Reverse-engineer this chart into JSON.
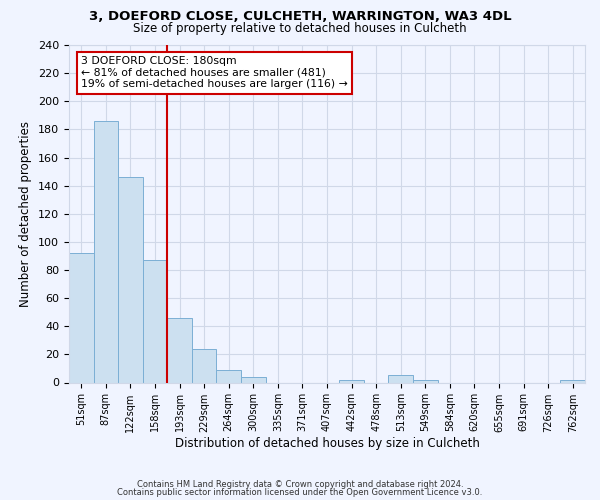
{
  "title1": "3, DOEFORD CLOSE, CULCHETH, WARRINGTON, WA3 4DL",
  "title2": "Size of property relative to detached houses in Culcheth",
  "xlabel": "Distribution of detached houses by size in Culcheth",
  "ylabel": "Number of detached properties",
  "bar_labels": [
    "51sqm",
    "87sqm",
    "122sqm",
    "158sqm",
    "193sqm",
    "229sqm",
    "264sqm",
    "300sqm",
    "335sqm",
    "371sqm",
    "407sqm",
    "442sqm",
    "478sqm",
    "513sqm",
    "549sqm",
    "584sqm",
    "620sqm",
    "655sqm",
    "691sqm",
    "726sqm",
    "762sqm"
  ],
  "bar_values": [
    92,
    186,
    146,
    87,
    46,
    24,
    9,
    4,
    0,
    0,
    0,
    2,
    0,
    5,
    2,
    0,
    0,
    0,
    0,
    0,
    2
  ],
  "bar_color": "#cce0f0",
  "bar_edge_color": "#7bafd4",
  "vline_x": 4,
  "vline_color": "#cc0000",
  "annotation_text": "3 DOEFORD CLOSE: 180sqm\n← 81% of detached houses are smaller (481)\n19% of semi-detached houses are larger (116) →",
  "annotation_box_color": "#ffffff",
  "annotation_box_edge": "#cc0000",
  "ylim": [
    0,
    240
  ],
  "yticks": [
    0,
    20,
    40,
    60,
    80,
    100,
    120,
    140,
    160,
    180,
    200,
    220,
    240
  ],
  "footer1": "Contains HM Land Registry data © Crown copyright and database right 2024.",
  "footer2": "Contains public sector information licensed under the Open Government Licence v3.0.",
  "bg_color": "#f0f4ff",
  "grid_color": "#d0d8e8",
  "plot_bg_color": "#f0f4ff"
}
